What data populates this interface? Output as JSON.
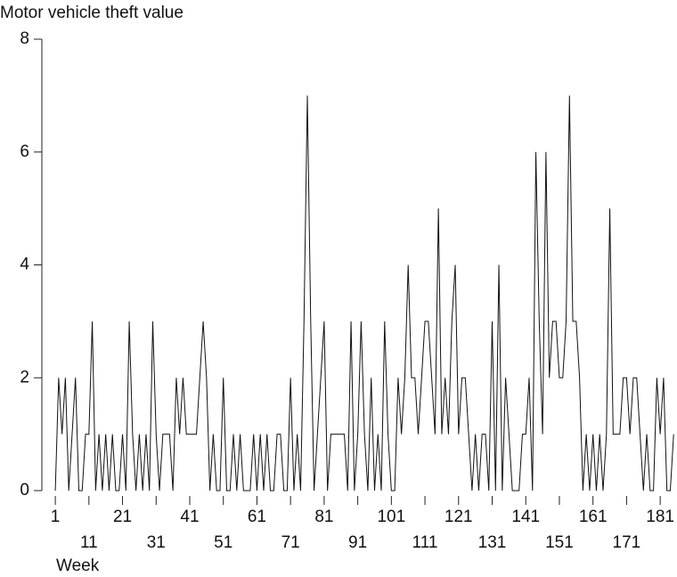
{
  "chart_data": {
    "type": "line",
    "title": "Motor vehicle theft value",
    "x_label": "Week",
    "x": [
      1,
      2,
      3,
      4,
      5,
      6,
      7,
      8,
      9,
      10,
      11,
      12,
      13,
      14,
      15,
      16,
      17,
      18,
      19,
      20,
      21,
      22,
      23,
      24,
      25,
      26,
      27,
      28,
      29,
      30,
      31,
      32,
      33,
      34,
      35,
      36,
      37,
      38,
      39,
      40,
      41,
      42,
      43,
      44,
      45,
      46,
      47,
      48,
      49,
      50,
      51,
      52,
      53,
      54,
      55,
      56,
      57,
      58,
      59,
      60,
      61,
      62,
      63,
      64,
      65,
      66,
      67,
      68,
      69,
      70,
      71,
      72,
      73,
      74,
      75,
      76,
      77,
      78,
      79,
      80,
      81,
      82,
      83,
      84,
      85,
      86,
      87,
      88,
      89,
      90,
      91,
      92,
      93,
      94,
      95,
      96,
      97,
      98,
      99,
      100,
      101,
      102,
      103,
      104,
      105,
      106,
      107,
      108,
      109,
      110,
      111,
      112,
      113,
      114,
      115,
      116,
      117,
      118,
      119,
      120,
      121,
      122,
      123,
      124,
      125,
      126,
      127,
      128,
      129,
      130,
      131,
      132,
      133,
      134,
      135,
      136,
      137,
      138,
      139,
      140,
      141,
      142,
      143,
      144,
      145,
      146,
      147,
      148,
      149,
      150,
      151,
      152,
      153,
      154,
      155,
      156,
      157,
      158,
      159,
      160,
      161,
      162,
      163,
      164,
      165,
      166,
      167,
      168,
      169,
      170,
      171,
      172,
      173,
      174,
      175,
      176,
      177,
      178,
      179,
      180,
      181,
      182,
      183,
      184,
      185
    ],
    "series": [
      {
        "name": "Motor vehicle theft value",
        "color": "#111111",
        "values": [
          0,
          2,
          1,
          2,
          0,
          1,
          2,
          0,
          0,
          1,
          1,
          3,
          0,
          1,
          0,
          1,
          0,
          1,
          0,
          0,
          1,
          0,
          3,
          1,
          0,
          1,
          0,
          1,
          0,
          3,
          1,
          0,
          1,
          1,
          1,
          0,
          2,
          1,
          2,
          1,
          1,
          1,
          1,
          2,
          3,
          2,
          0,
          1,
          0,
          0,
          2,
          0,
          0,
          1,
          0,
          1,
          0,
          0,
          0,
          1,
          0,
          1,
          0,
          1,
          0,
          0,
          1,
          1,
          0,
          0,
          2,
          0,
          1,
          0,
          3,
          7,
          3,
          0,
          1,
          2,
          3,
          0,
          1,
          1,
          1,
          1,
          1,
          0,
          3,
          0,
          1,
          3,
          1,
          0,
          2,
          0,
          1,
          0,
          3,
          1,
          0,
          0,
          2,
          1,
          2,
          4,
          2,
          2,
          1,
          2,
          3,
          3,
          2,
          1,
          5,
          1,
          2,
          1,
          3,
          4,
          1,
          2,
          2,
          1,
          0,
          1,
          0,
          1,
          1,
          0,
          3,
          0,
          4,
          0,
          2,
          1,
          0,
          0,
          0,
          1,
          1,
          2,
          0,
          6,
          3,
          1,
          6,
          2,
          3,
          3,
          2,
          2,
          3,
          7,
          3,
          3,
          2,
          0,
          1,
          0,
          1,
          0,
          1,
          0,
          1,
          5,
          1,
          1,
          1,
          2,
          2,
          1,
          2,
          2,
          1,
          0,
          1,
          0,
          0,
          2,
          1,
          2,
          0,
          0,
          1
        ]
      }
    ],
    "xlim": [
      -3,
      186
    ],
    "ylim": [
      0,
      8
    ],
    "xticks": [
      1,
      11,
      21,
      31,
      41,
      51,
      61,
      71,
      81,
      91,
      101,
      111,
      121,
      131,
      141,
      151,
      161,
      171,
      181
    ],
    "yticks": [
      0,
      2,
      4,
      6,
      8
    ]
  }
}
